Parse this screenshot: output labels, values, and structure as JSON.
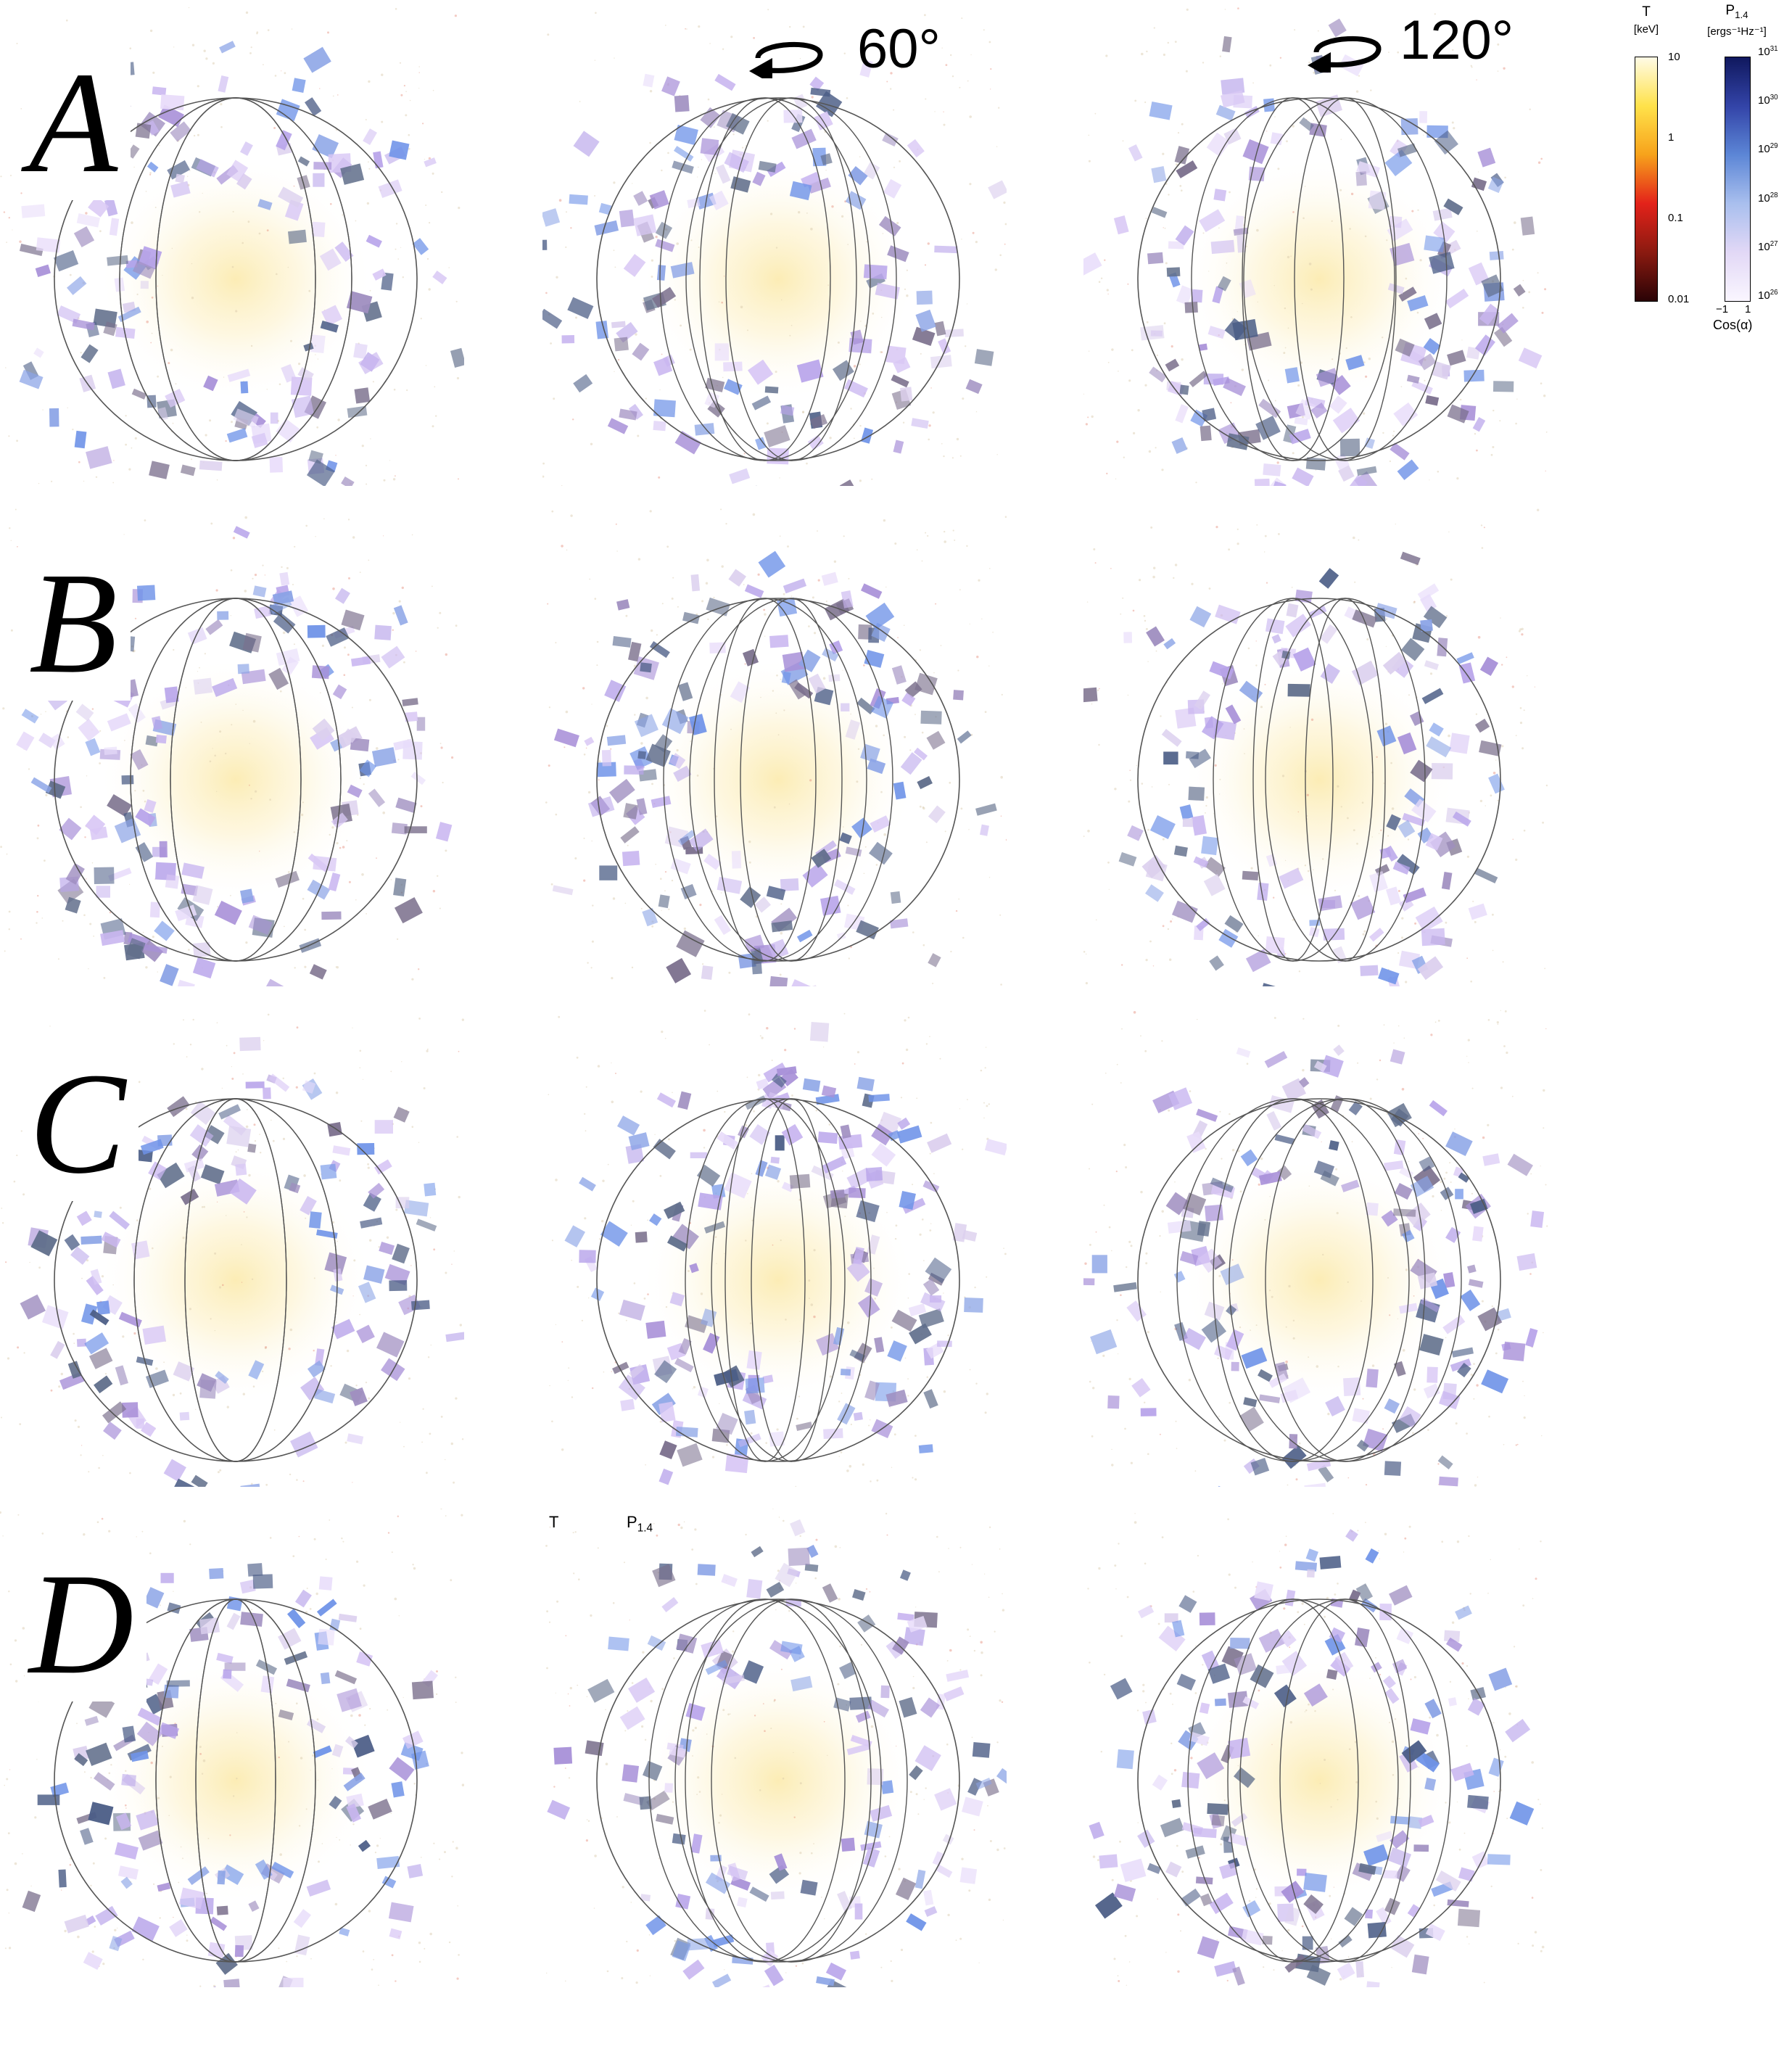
{
  "rows": [
    {
      "letter": "A"
    },
    {
      "letter": "B"
    },
    {
      "letter": "C"
    },
    {
      "letter": "D"
    }
  ],
  "rotations": [
    "60°",
    "120°"
  ],
  "colorbar_T": {
    "title": "T",
    "unit": "[keV]",
    "ticks": [
      "10",
      "1",
      "0.1",
      "0.01"
    ],
    "colors": [
      "#fffbe6",
      "#ffe24a",
      "#f7a21b",
      "#e3221a",
      "#8b1a10",
      "#2a0306"
    ]
  },
  "colorbar_P": {
    "title_main": "P",
    "title_sub": "1.4",
    "unit": "[ergs⁻¹Hz⁻¹]",
    "tick_base": "10",
    "tick_exponents": [
      "31",
      "30",
      "29",
      "28",
      "27",
      "26"
    ],
    "bottom_ticks": [
      "−1",
      "1"
    ],
    "bottom_label": "Cos(α)",
    "colors": [
      "#10185e",
      "#3344a8",
      "#5c86d6",
      "#a9bfee",
      "#e2d8f6",
      "#faf6ff"
    ]
  },
  "stray_labels": {
    "t": "T",
    "p_main": "P",
    "p_sub": "1.4"
  }
}
